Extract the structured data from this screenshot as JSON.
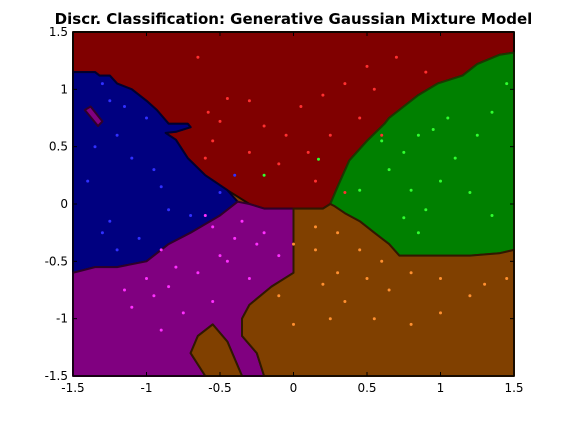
{
  "chart_data": {
    "type": "scatter",
    "title": "Discr. Classification: Generative Gaussian Mixture Model",
    "xlabel": "",
    "ylabel": "",
    "xlim": [
      -1.5,
      1.5
    ],
    "ylim": [
      -1.5,
      1.5
    ],
    "xticks": [
      "-1.5",
      "-1",
      "-0.5",
      "0",
      "0.5",
      "1",
      "1.5"
    ],
    "yticks": [
      "-1.5",
      "-1",
      "-0.5",
      "0",
      "0.5",
      "1",
      "1.5"
    ],
    "grid": false,
    "legend": "none",
    "regions": [
      {
        "class": "red",
        "fill": "#800000",
        "edge": "#1a0a00",
        "polygon": [
          [
            -1.5,
            1.5
          ],
          [
            -1.5,
            1.15
          ],
          [
            -1.35,
            1.15
          ],
          [
            -1.32,
            1.12
          ],
          [
            -1.25,
            1.12
          ],
          [
            -1.2,
            1.05
          ],
          [
            -1.1,
            1.0
          ],
          [
            -1.0,
            0.9
          ],
          [
            -0.93,
            0.82
          ],
          [
            -0.85,
            0.7
          ],
          [
            -0.72,
            0.7
          ],
          [
            -0.7,
            0.67
          ],
          [
            -0.8,
            0.63
          ],
          [
            -0.87,
            0.62
          ],
          [
            -0.8,
            0.56
          ],
          [
            -0.72,
            0.4
          ],
          [
            -0.6,
            0.25
          ],
          [
            -0.45,
            0.12
          ],
          [
            -0.3,
            0.0
          ],
          [
            -0.2,
            -0.04
          ],
          [
            0.0,
            -0.04
          ],
          [
            0.2,
            -0.04
          ],
          [
            0.25,
            0.0
          ],
          [
            0.3,
            0.15
          ],
          [
            0.38,
            0.38
          ],
          [
            0.5,
            0.55
          ],
          [
            0.62,
            0.7
          ],
          [
            0.65,
            0.75
          ],
          [
            0.85,
            0.95
          ],
          [
            0.98,
            1.05
          ],
          [
            1.15,
            1.12
          ],
          [
            1.25,
            1.22
          ],
          [
            1.4,
            1.3
          ],
          [
            1.5,
            1.32
          ],
          [
            1.5,
            1.5
          ]
        ]
      },
      {
        "class": "green",
        "fill": "#008000",
        "edge": "#1a3a00",
        "polygon": [
          [
            1.5,
            1.32
          ],
          [
            1.4,
            1.3
          ],
          [
            1.25,
            1.22
          ],
          [
            1.15,
            1.12
          ],
          [
            0.98,
            1.05
          ],
          [
            0.85,
            0.95
          ],
          [
            0.65,
            0.75
          ],
          [
            0.62,
            0.7
          ],
          [
            0.5,
            0.55
          ],
          [
            0.38,
            0.38
          ],
          [
            0.3,
            0.15
          ],
          [
            0.25,
            0.0
          ],
          [
            0.28,
            -0.02
          ],
          [
            0.35,
            -0.08
          ],
          [
            0.45,
            -0.15
          ],
          [
            0.55,
            -0.25
          ],
          [
            0.65,
            -0.35
          ],
          [
            0.72,
            -0.45
          ],
          [
            0.85,
            -0.45
          ],
          [
            1.2,
            -0.45
          ],
          [
            1.4,
            -0.43
          ],
          [
            1.5,
            -0.4
          ]
        ]
      },
      {
        "class": "blue",
        "fill": "#000080",
        "edge": "#000030",
        "polygon": [
          [
            -1.5,
            1.15
          ],
          [
            -1.35,
            1.15
          ],
          [
            -1.32,
            1.12
          ],
          [
            -1.25,
            1.12
          ],
          [
            -1.2,
            1.05
          ],
          [
            -1.1,
            1.0
          ],
          [
            -1.0,
            0.9
          ],
          [
            -0.93,
            0.82
          ],
          [
            -0.85,
            0.7
          ],
          [
            -0.72,
            0.7
          ],
          [
            -0.7,
            0.67
          ],
          [
            -0.8,
            0.63
          ],
          [
            -0.87,
            0.62
          ],
          [
            -0.8,
            0.56
          ],
          [
            -0.72,
            0.4
          ],
          [
            -0.6,
            0.25
          ],
          [
            -0.45,
            0.12
          ],
          [
            -0.38,
            0.02
          ],
          [
            -0.5,
            -0.1
          ],
          [
            -0.7,
            -0.25
          ],
          [
            -0.85,
            -0.35
          ],
          [
            -1.0,
            -0.5
          ],
          [
            -1.2,
            -0.55
          ],
          [
            -1.35,
            -0.55
          ],
          [
            -1.5,
            -0.6
          ]
        ]
      },
      {
        "class": "magenta",
        "fill": "#800080",
        "edge": "#30002a",
        "polygon": [
          [
            -1.5,
            -0.6
          ],
          [
            -1.35,
            -0.55
          ],
          [
            -1.2,
            -0.55
          ],
          [
            -1.0,
            -0.5
          ],
          [
            -0.85,
            -0.35
          ],
          [
            -0.7,
            -0.25
          ],
          [
            -0.5,
            -0.1
          ],
          [
            -0.38,
            0.02
          ],
          [
            -0.3,
            0.0
          ],
          [
            -0.2,
            -0.04
          ],
          [
            0.0,
            -0.04
          ],
          [
            0.0,
            -0.6
          ],
          [
            -0.15,
            -0.72
          ],
          [
            -0.3,
            -0.88
          ],
          [
            -0.35,
            -1.0
          ],
          [
            -0.35,
            -1.15
          ],
          [
            -0.25,
            -1.3
          ],
          [
            -0.2,
            -1.5
          ],
          [
            -0.35,
            -1.5
          ],
          [
            -0.45,
            -1.2
          ],
          [
            -0.55,
            -1.05
          ],
          [
            -0.65,
            -1.15
          ],
          [
            -0.7,
            -1.3
          ],
          [
            -0.6,
            -1.5
          ],
          [
            -1.5,
            -1.5
          ]
        ]
      },
      {
        "class": "orange",
        "fill": "#804000",
        "edge": "#301800",
        "polygon": [
          [
            0.0,
            -0.04
          ],
          [
            0.2,
            -0.04
          ],
          [
            0.25,
            0.0
          ],
          [
            0.28,
            -0.02
          ],
          [
            0.35,
            -0.08
          ],
          [
            0.45,
            -0.15
          ],
          [
            0.55,
            -0.25
          ],
          [
            0.65,
            -0.35
          ],
          [
            0.72,
            -0.45
          ],
          [
            0.85,
            -0.45
          ],
          [
            1.2,
            -0.45
          ],
          [
            1.4,
            -0.43
          ],
          [
            1.5,
            -0.4
          ],
          [
            1.5,
            -1.5
          ],
          [
            -0.2,
            -1.5
          ],
          [
            -0.25,
            -1.3
          ],
          [
            -0.35,
            -1.15
          ],
          [
            -0.35,
            -1.0
          ],
          [
            -0.3,
            -0.88
          ],
          [
            -0.15,
            -0.72
          ],
          [
            0.0,
            -0.6
          ]
        ]
      },
      {
        "class": "orange-island",
        "fill": "#804000",
        "edge": "#301800",
        "polygon": [
          [
            -0.6,
            -1.5
          ],
          [
            -0.7,
            -1.3
          ],
          [
            -0.65,
            -1.15
          ],
          [
            -0.55,
            -1.05
          ],
          [
            -0.45,
            -1.2
          ],
          [
            -0.35,
            -1.5
          ]
        ]
      },
      {
        "class": "magenta-island",
        "fill": "#800080",
        "edge": "#30002a",
        "polygon": [
          [
            -1.42,
            0.82
          ],
          [
            -1.38,
            0.85
          ],
          [
            -1.3,
            0.72
          ],
          [
            -1.33,
            0.68
          ]
        ]
      }
    ],
    "series": [
      {
        "color": "#ff3030",
        "points": [
          [
            -0.65,
            1.28
          ],
          [
            -0.45,
            0.92
          ],
          [
            -0.3,
            0.9
          ],
          [
            -0.58,
            0.8
          ],
          [
            -0.5,
            0.72
          ],
          [
            -0.2,
            0.68
          ],
          [
            -0.55,
            0.55
          ],
          [
            -0.6,
            0.4
          ],
          [
            -0.3,
            0.45
          ],
          [
            0.05,
            0.85
          ],
          [
            0.2,
            0.95
          ],
          [
            0.35,
            1.05
          ],
          [
            0.55,
            1.0
          ],
          [
            0.45,
            0.75
          ],
          [
            0.25,
            0.6
          ],
          [
            0.1,
            0.45
          ],
          [
            -0.1,
            0.35
          ],
          [
            0.15,
            0.2
          ],
          [
            0.35,
            0.1
          ],
          [
            0.5,
            1.2
          ],
          [
            0.7,
            1.28
          ],
          [
            0.9,
            1.15
          ],
          [
            -0.05,
            0.6
          ],
          [
            0.6,
            0.6
          ]
        ]
      },
      {
        "color": "#30ff30",
        "points": [
          [
            0.6,
            0.55
          ],
          [
            0.75,
            0.45
          ],
          [
            0.95,
            0.65
          ],
          [
            1.05,
            0.75
          ],
          [
            1.25,
            0.6
          ],
          [
            1.35,
            0.8
          ],
          [
            1.45,
            1.05
          ],
          [
            0.8,
            0.12
          ],
          [
            1.0,
            0.2
          ],
          [
            1.2,
            0.1
          ],
          [
            1.35,
            -0.1
          ],
          [
            0.9,
            -0.05
          ],
          [
            0.75,
            -0.12
          ],
          [
            0.85,
            -0.25
          ],
          [
            0.45,
            0.12
          ],
          [
            0.65,
            0.3
          ],
          [
            1.1,
            0.4
          ],
          [
            0.17,
            0.39
          ],
          [
            -0.2,
            0.25
          ],
          [
            0.85,
            0.6
          ]
        ]
      },
      {
        "color": "#3030ff",
        "points": [
          [
            -1.3,
            1.05
          ],
          [
            -1.25,
            0.9
          ],
          [
            -1.15,
            0.85
          ],
          [
            -1.0,
            0.75
          ],
          [
            -1.2,
            0.6
          ],
          [
            -1.35,
            0.5
          ],
          [
            -1.1,
            0.4
          ],
          [
            -0.95,
            0.3
          ],
          [
            -0.9,
            0.15
          ],
          [
            -0.85,
            -0.05
          ],
          [
            -0.7,
            -0.1
          ],
          [
            -1.05,
            -0.3
          ],
          [
            -1.25,
            -0.15
          ],
          [
            -1.4,
            0.2
          ],
          [
            -1.2,
            -0.4
          ],
          [
            -1.3,
            -0.25
          ],
          [
            -0.4,
            0.25
          ],
          [
            -0.5,
            0.1
          ]
        ]
      },
      {
        "color": "#ff30ff",
        "points": [
          [
            -0.9,
            -0.4
          ],
          [
            -0.8,
            -0.55
          ],
          [
            -1.0,
            -0.65
          ],
          [
            -1.15,
            -0.75
          ],
          [
            -0.85,
            -0.72
          ],
          [
            -0.65,
            -0.6
          ],
          [
            -0.5,
            -0.45
          ],
          [
            -0.4,
            -0.3
          ],
          [
            -0.55,
            -0.2
          ],
          [
            -0.35,
            -0.15
          ],
          [
            -0.2,
            -0.25
          ],
          [
            -0.1,
            -0.45
          ],
          [
            -0.3,
            -0.65
          ],
          [
            -0.55,
            -0.85
          ],
          [
            -0.75,
            -0.95
          ],
          [
            -0.95,
            -0.8
          ],
          [
            -1.1,
            -0.9
          ],
          [
            -0.9,
            -1.1
          ],
          [
            -0.6,
            -0.1
          ],
          [
            -0.45,
            -0.5
          ],
          [
            -0.25,
            -0.35
          ]
        ]
      },
      {
        "color": "#ff9030",
        "points": [
          [
            0.0,
            -0.35
          ],
          [
            0.15,
            -0.4
          ],
          [
            0.3,
            -0.25
          ],
          [
            0.45,
            -0.4
          ],
          [
            0.6,
            -0.5
          ],
          [
            0.8,
            -0.6
          ],
          [
            1.0,
            -0.65
          ],
          [
            1.2,
            -0.8
          ],
          [
            1.3,
            -0.7
          ],
          [
            1.45,
            -0.65
          ],
          [
            0.2,
            -0.7
          ],
          [
            0.35,
            -0.85
          ],
          [
            0.55,
            -1.0
          ],
          [
            0.8,
            -1.05
          ],
          [
            1.0,
            -0.95
          ],
          [
            0.25,
            -1.0
          ],
          [
            0.0,
            -1.05
          ],
          [
            -0.1,
            -0.8
          ],
          [
            0.5,
            -0.65
          ],
          [
            0.15,
            -0.2
          ],
          [
            0.3,
            -0.6
          ],
          [
            0.65,
            -0.75
          ]
        ]
      }
    ]
  }
}
